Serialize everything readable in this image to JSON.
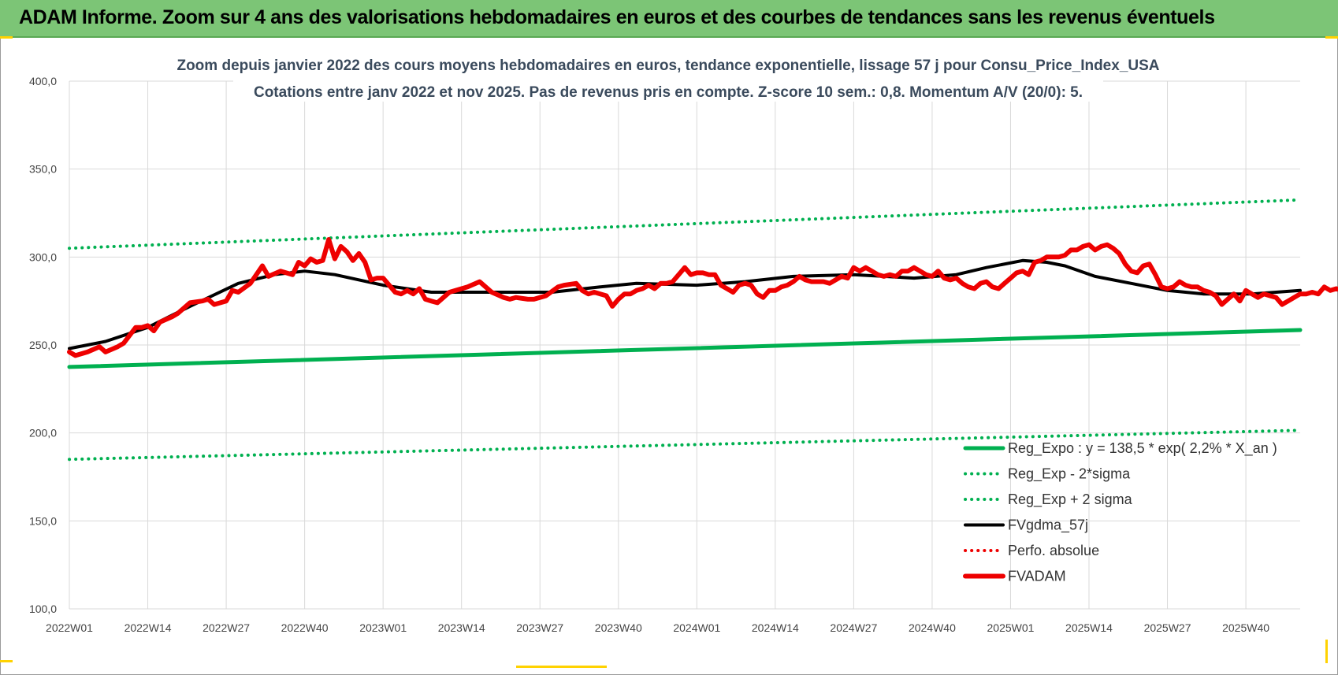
{
  "header": {
    "title": "ADAM Informe. Zoom sur 4 ans des valorisations hebdomadaires en euros et des courbes de tendances sans les revenus éventuels"
  },
  "colors": {
    "header_bg": "#7cc576",
    "accent": "#ffd200",
    "fvadam": "#ee0000",
    "fvgdma": "#000000",
    "regression": "#00b050",
    "sigma": "#00b050",
    "perfo": "#ee0000",
    "grid": "#d9d9d9"
  },
  "chart_data": {
    "type": "line",
    "title": "Zoom depuis janvier 2022 des cours moyens hebdomadaires en euros, tendance exponentielle, lissage 57 j pour Consu_Price_Index_USA",
    "subtitle": "Cotations entre janv 2022 et nov 2025. Pas de revenus pris en compte. Z-score 10 sem.: 0,8. Momentum A/V (20/0): 5.",
    "xlabel": "",
    "ylabel": "",
    "ylim": [
      100,
      400
    ],
    "yticks": [
      "100,0",
      "150,0",
      "200,0",
      "250,0",
      "300,0",
      "350,0",
      "400,0"
    ],
    "x_start_week": 0,
    "x_end_week": 204,
    "xticks": [
      {
        "label": "2022W01",
        "week": 0
      },
      {
        "label": "2022W14",
        "week": 13
      },
      {
        "label": "2022W27",
        "week": 26
      },
      {
        "label": "2022W40",
        "week": 39
      },
      {
        "label": "2023W01",
        "week": 52
      },
      {
        "label": "2023W14",
        "week": 65
      },
      {
        "label": "2023W27",
        "week": 78
      },
      {
        "label": "2023W40",
        "week": 91
      },
      {
        "label": "2024W01",
        "week": 104
      },
      {
        "label": "2024W14",
        "week": 117
      },
      {
        "label": "2024W27",
        "week": 130
      },
      {
        "label": "2024W40",
        "week": 143
      },
      {
        "label": "2025W01",
        "week": 156
      },
      {
        "label": "2025W14",
        "week": 169
      },
      {
        "label": "2025W27",
        "week": 182
      },
      {
        "label": "2025W40",
        "week": 195
      }
    ],
    "legend_position": "bottom-right",
    "series": [
      {
        "name": "Reg_Expo : y = 138,5 * exp( 2,2% *  X_an )",
        "style": "solid-thick",
        "color": "#00b050",
        "points": [
          [
            0,
            237.5
          ],
          [
            204,
            258.5
          ]
        ]
      },
      {
        "name": "Reg_Exp - 2*sigma",
        "style": "dotted",
        "color": "#00b050",
        "points": [
          [
            0,
            185
          ],
          [
            204,
            201.5
          ]
        ]
      },
      {
        "name": "Reg_Exp + 2 sigma",
        "style": "dotted",
        "color": "#00b050",
        "points": [
          [
            0,
            305
          ],
          [
            204,
            332.5
          ]
        ]
      },
      {
        "name": "FVgdma_57j",
        "style": "solid",
        "color": "#000000",
        "points": [
          [
            0,
            248
          ],
          [
            6,
            252
          ],
          [
            13,
            260
          ],
          [
            20,
            272
          ],
          [
            28,
            285
          ],
          [
            34,
            290
          ],
          [
            39,
            292
          ],
          [
            44,
            290
          ],
          [
            52,
            284
          ],
          [
            60,
            280
          ],
          [
            70,
            280
          ],
          [
            80,
            280
          ],
          [
            88,
            283
          ],
          [
            94,
            285
          ],
          [
            104,
            284
          ],
          [
            112,
            286
          ],
          [
            120,
            289
          ],
          [
            130,
            290
          ],
          [
            140,
            288
          ],
          [
            147,
            290
          ],
          [
            152,
            294
          ],
          [
            158,
            298
          ],
          [
            162,
            297
          ],
          [
            165,
            295
          ],
          [
            170,
            289
          ],
          [
            176,
            285
          ],
          [
            182,
            281
          ],
          [
            188,
            279
          ],
          [
            196,
            279
          ],
          [
            204,
            281
          ]
        ]
      },
      {
        "name": "Perfo. absolue",
        "style": "dotted",
        "color": "#ee0000",
        "points": []
      },
      {
        "name": "FVADAM",
        "style": "solid-thick",
        "color": "#ee0000",
        "points": [
          [
            0,
            246
          ],
          [
            1,
            244
          ],
          [
            3,
            246
          ],
          [
            5,
            249
          ],
          [
            6,
            246
          ],
          [
            8,
            249
          ],
          [
            9,
            251
          ],
          [
            11,
            260
          ],
          [
            12,
            260
          ],
          [
            13,
            261
          ],
          [
            14,
            258
          ],
          [
            15,
            263
          ],
          [
            17,
            266
          ],
          [
            18,
            268
          ],
          [
            20,
            274
          ],
          [
            22,
            275
          ],
          [
            23,
            276
          ],
          [
            24,
            273
          ],
          [
            26,
            275
          ],
          [
            27,
            281
          ],
          [
            28,
            280
          ],
          [
            30,
            285
          ],
          [
            32,
            295
          ],
          [
            33,
            289
          ],
          [
            35,
            292
          ],
          [
            37,
            290
          ],
          [
            38,
            297
          ],
          [
            39,
            295
          ],
          [
            40,
            299
          ],
          [
            41,
            297
          ],
          [
            42,
            298
          ],
          [
            43,
            310
          ],
          [
            44,
            299
          ],
          [
            45,
            306
          ],
          [
            46,
            303
          ],
          [
            47,
            298
          ],
          [
            48,
            302
          ],
          [
            49,
            297
          ],
          [
            50,
            287
          ],
          [
            51,
            288
          ],
          [
            52,
            288
          ],
          [
            54,
            280
          ],
          [
            55,
            279
          ],
          [
            56,
            281
          ],
          [
            57,
            279
          ],
          [
            58,
            282
          ],
          [
            59,
            276
          ],
          [
            60,
            275
          ],
          [
            61,
            274
          ],
          [
            63,
            280
          ],
          [
            65,
            282
          ],
          [
            66,
            283
          ],
          [
            68,
            286
          ],
          [
            70,
            280
          ],
          [
            72,
            277
          ],
          [
            73,
            276
          ],
          [
            74,
            277
          ],
          [
            76,
            276
          ],
          [
            77,
            276
          ],
          [
            79,
            278
          ],
          [
            81,
            283
          ],
          [
            82,
            284
          ],
          [
            84,
            285
          ],
          [
            85,
            281
          ],
          [
            86,
            279
          ],
          [
            87,
            280
          ],
          [
            88,
            279
          ],
          [
            89,
            278
          ],
          [
            90,
            272
          ],
          [
            91,
            276
          ],
          [
            92,
            279
          ],
          [
            93,
            279
          ],
          [
            94,
            281
          ],
          [
            95,
            282
          ],
          [
            96,
            284
          ],
          [
            97,
            282
          ],
          [
            98,
            285
          ],
          [
            99,
            285
          ],
          [
            100,
            286
          ],
          [
            101,
            290
          ],
          [
            102,
            294
          ],
          [
            103,
            290
          ],
          [
            104,
            291
          ],
          [
            105,
            291
          ],
          [
            106,
            290
          ],
          [
            107,
            290
          ],
          [
            108,
            284
          ],
          [
            109,
            282
          ],
          [
            110,
            280
          ],
          [
            111,
            284
          ],
          [
            112,
            285
          ],
          [
            113,
            284
          ],
          [
            114,
            279
          ],
          [
            115,
            277
          ],
          [
            116,
            281
          ],
          [
            117,
            281
          ],
          [
            118,
            283
          ],
          [
            119,
            284
          ],
          [
            120,
            286
          ],
          [
            121,
            289
          ],
          [
            122,
            287
          ],
          [
            123,
            286
          ],
          [
            125,
            286
          ],
          [
            126,
            285
          ],
          [
            127,
            287
          ],
          [
            128,
            289
          ],
          [
            129,
            288
          ],
          [
            130,
            294
          ],
          [
            131,
            292
          ],
          [
            132,
            294
          ],
          [
            133,
            292
          ],
          [
            134,
            290
          ],
          [
            135,
            289
          ],
          [
            136,
            290
          ],
          [
            137,
            289
          ],
          [
            138,
            292
          ],
          [
            139,
            292
          ],
          [
            140,
            294
          ],
          [
            141,
            292
          ],
          [
            142,
            290
          ],
          [
            143,
            289
          ],
          [
            144,
            292
          ],
          [
            145,
            288
          ],
          [
            146,
            287
          ],
          [
            147,
            288
          ],
          [
            148,
            285
          ],
          [
            149,
            283
          ],
          [
            150,
            282
          ],
          [
            151,
            285
          ],
          [
            152,
            286
          ],
          [
            153,
            283
          ],
          [
            154,
            282
          ],
          [
            155,
            285
          ],
          [
            156,
            288
          ],
          [
            157,
            291
          ],
          [
            158,
            292
          ],
          [
            159,
            290
          ],
          [
            160,
            297
          ],
          [
            161,
            298
          ],
          [
            162,
            300
          ],
          [
            163,
            300
          ],
          [
            164,
            300
          ],
          [
            165,
            301
          ],
          [
            166,
            304
          ],
          [
            167,
            304
          ],
          [
            168,
            306
          ],
          [
            169,
            307
          ],
          [
            170,
            304
          ],
          [
            171,
            306
          ],
          [
            172,
            307
          ],
          [
            173,
            305
          ],
          [
            174,
            302
          ],
          [
            175,
            296
          ],
          [
            176,
            292
          ],
          [
            177,
            291
          ],
          [
            178,
            295
          ],
          [
            179,
            296
          ],
          [
            180,
            290
          ],
          [
            181,
            283
          ],
          [
            182,
            282
          ],
          [
            183,
            283
          ],
          [
            184,
            286
          ],
          [
            185,
            284
          ],
          [
            186,
            283
          ],
          [
            187,
            283
          ],
          [
            188,
            281
          ],
          [
            189,
            280
          ],
          [
            190,
            278
          ],
          [
            191,
            273
          ],
          [
            192,
            276
          ],
          [
            193,
            279
          ],
          [
            194,
            275
          ],
          [
            195,
            281
          ],
          [
            196,
            279
          ],
          [
            197,
            277
          ],
          [
            198,
            279
          ],
          [
            199,
            278
          ],
          [
            200,
            277
          ],
          [
            201,
            273
          ],
          [
            202,
            275
          ],
          [
            203,
            277
          ],
          [
            204,
            279
          ],
          [
            205,
            279
          ],
          [
            206,
            280
          ],
          [
            207,
            279
          ],
          [
            208,
            283
          ],
          [
            209,
            281
          ],
          [
            210,
            282
          ],
          [
            211,
            281
          ]
        ]
      }
    ]
  }
}
